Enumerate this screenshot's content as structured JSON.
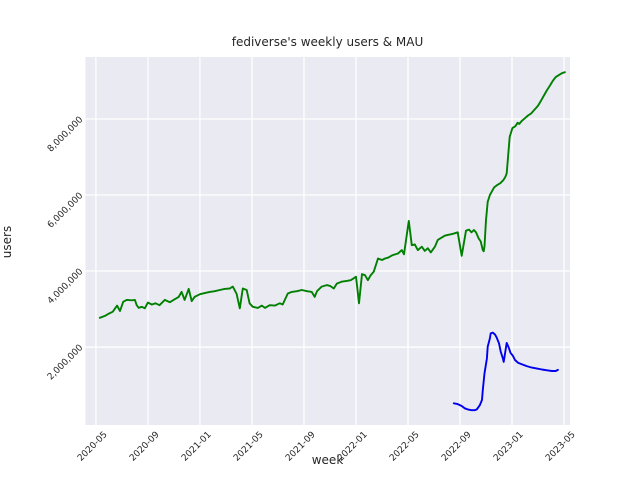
{
  "chart_data": {
    "type": "line",
    "title": "fediverse's weekly users & MAU",
    "xlabel": "week",
    "ylabel": "users",
    "grid": true,
    "legend": "none",
    "plot_bg_color": "#eaeaf2",
    "grid_color": "#ffffff",
    "text_color": "#262626",
    "x_tick_labels": [
      "2020-05",
      "2020-09",
      "2021-01",
      "2021-05",
      "2021-09",
      "2022-01",
      "2022-05",
      "2022-09",
      "2023-01",
      "2023-05"
    ],
    "y_ticks": [
      {
        "value": 2000000,
        "label": "2,000,000"
      },
      {
        "value": 4000000,
        "label": "4,000,000"
      },
      {
        "value": 6000000,
        "label": "6,000,000"
      },
      {
        "value": 8000000,
        "label": "8,000,000"
      }
    ],
    "xlim": [
      "2020-04-07",
      "2023-05-15"
    ],
    "ylim": [
      -50000,
      9630000
    ],
    "series": [
      {
        "name": "weekly users",
        "color": "#008000",
        "points": [
          [
            "2020-05-10",
            2770000
          ],
          [
            "2020-05-22",
            2820000
          ],
          [
            "2020-06-01",
            2880000
          ],
          [
            "2020-06-10",
            2930000
          ],
          [
            "2020-06-20",
            3090000
          ],
          [
            "2020-06-27",
            2950000
          ],
          [
            "2020-07-04",
            3190000
          ],
          [
            "2020-07-12",
            3240000
          ],
          [
            "2020-07-24",
            3230000
          ],
          [
            "2020-08-01",
            3240000
          ],
          [
            "2020-08-05",
            3100000
          ],
          [
            "2020-08-10",
            3030000
          ],
          [
            "2020-08-17",
            3060000
          ],
          [
            "2020-08-24",
            3020000
          ],
          [
            "2020-09-01",
            3170000
          ],
          [
            "2020-09-10",
            3120000
          ],
          [
            "2020-09-19",
            3150000
          ],
          [
            "2020-09-28",
            3100000
          ],
          [
            "2020-10-10",
            3240000
          ],
          [
            "2020-10-22",
            3180000
          ],
          [
            "2020-11-03",
            3260000
          ],
          [
            "2020-11-12",
            3320000
          ],
          [
            "2020-11-19",
            3450000
          ],
          [
            "2020-11-26",
            3240000
          ],
          [
            "2020-12-05",
            3530000
          ],
          [
            "2020-12-12",
            3210000
          ],
          [
            "2020-12-19",
            3320000
          ],
          [
            "2021-01-01",
            3390000
          ],
          [
            "2021-01-12",
            3420000
          ],
          [
            "2021-01-24",
            3450000
          ],
          [
            "2021-02-05",
            3470000
          ],
          [
            "2021-02-17",
            3500000
          ],
          [
            "2021-02-28",
            3530000
          ],
          [
            "2021-03-10",
            3540000
          ],
          [
            "2021-03-17",
            3590000
          ],
          [
            "2021-03-26",
            3400000
          ],
          [
            "2021-04-03",
            3020000
          ],
          [
            "2021-04-10",
            3540000
          ],
          [
            "2021-04-19",
            3500000
          ],
          [
            "2021-04-26",
            3150000
          ],
          [
            "2021-05-03",
            3060000
          ],
          [
            "2021-05-15",
            3030000
          ],
          [
            "2021-05-24",
            3090000
          ],
          [
            "2021-06-01",
            3030000
          ],
          [
            "2021-06-12",
            3100000
          ],
          [
            "2021-06-24",
            3090000
          ],
          [
            "2021-07-05",
            3150000
          ],
          [
            "2021-07-12",
            3120000
          ],
          [
            "2021-07-24",
            3410000
          ],
          [
            "2021-08-03",
            3450000
          ],
          [
            "2021-08-15",
            3470000
          ],
          [
            "2021-08-26",
            3500000
          ],
          [
            "2021-09-08",
            3470000
          ],
          [
            "2021-09-19",
            3450000
          ],
          [
            "2021-09-26",
            3320000
          ],
          [
            "2021-10-01",
            3470000
          ],
          [
            "2021-10-12",
            3590000
          ],
          [
            "2021-10-24",
            3630000
          ],
          [
            "2021-11-01",
            3610000
          ],
          [
            "2021-11-10",
            3540000
          ],
          [
            "2021-11-17",
            3670000
          ],
          [
            "2021-11-28",
            3720000
          ],
          [
            "2021-12-10",
            3740000
          ],
          [
            "2021-12-19",
            3760000
          ],
          [
            "2021-12-26",
            3810000
          ],
          [
            "2022-01-01",
            3850000
          ],
          [
            "2022-01-08",
            3150000
          ],
          [
            "2022-01-15",
            3920000
          ],
          [
            "2022-01-22",
            3890000
          ],
          [
            "2022-01-29",
            3760000
          ],
          [
            "2022-02-05",
            3890000
          ],
          [
            "2022-02-12",
            3980000
          ],
          [
            "2022-02-22",
            4330000
          ],
          [
            "2022-03-01",
            4290000
          ],
          [
            "2022-03-08",
            4330000
          ],
          [
            "2022-03-15",
            4350000
          ],
          [
            "2022-03-26",
            4420000
          ],
          [
            "2022-04-08",
            4460000
          ],
          [
            "2022-04-17",
            4550000
          ],
          [
            "2022-04-22",
            4440000
          ],
          [
            "2022-05-03",
            5320000
          ],
          [
            "2022-05-10",
            4680000
          ],
          [
            "2022-05-17",
            4700000
          ],
          [
            "2022-05-24",
            4550000
          ],
          [
            "2022-06-03",
            4640000
          ],
          [
            "2022-06-10",
            4530000
          ],
          [
            "2022-06-17",
            4600000
          ],
          [
            "2022-06-24",
            4490000
          ],
          [
            "2022-07-03",
            4640000
          ],
          [
            "2022-07-10",
            4820000
          ],
          [
            "2022-07-19",
            4880000
          ],
          [
            "2022-07-26",
            4930000
          ],
          [
            "2022-08-03",
            4950000
          ],
          [
            "2022-08-15",
            4980000
          ],
          [
            "2022-08-26",
            5020000
          ],
          [
            "2022-09-05",
            4400000
          ],
          [
            "2022-09-15",
            5060000
          ],
          [
            "2022-09-22",
            5090000
          ],
          [
            "2022-09-28",
            5020000
          ],
          [
            "2022-10-03",
            5080000
          ],
          [
            "2022-10-08",
            5020000
          ],
          [
            "2022-10-14",
            4860000
          ],
          [
            "2022-10-19",
            4780000
          ],
          [
            "2022-10-24",
            4550000
          ],
          [
            "2022-10-26",
            4520000
          ],
          [
            "2022-10-28",
            4650000
          ],
          [
            "2022-11-01",
            5340000
          ],
          [
            "2022-11-05",
            5820000
          ],
          [
            "2022-11-10",
            6000000
          ],
          [
            "2022-11-15",
            6100000
          ],
          [
            "2022-11-20",
            6200000
          ],
          [
            "2022-11-27",
            6260000
          ],
          [
            "2022-12-04",
            6310000
          ],
          [
            "2022-12-11",
            6390000
          ],
          [
            "2022-12-16",
            6480000
          ],
          [
            "2022-12-19",
            6570000
          ],
          [
            "2022-12-26",
            7530000
          ],
          [
            "2023-01-02",
            7760000
          ],
          [
            "2023-01-09",
            7810000
          ],
          [
            "2023-01-14",
            7900000
          ],
          [
            "2023-01-18",
            7870000
          ],
          [
            "2023-01-24",
            7950000
          ],
          [
            "2023-02-01",
            8020000
          ],
          [
            "2023-02-08",
            8090000
          ],
          [
            "2023-02-15",
            8140000
          ],
          [
            "2023-02-22",
            8230000
          ],
          [
            "2023-03-01",
            8350000
          ],
          [
            "2023-03-08",
            8480000
          ],
          [
            "2023-03-15",
            8620000
          ],
          [
            "2023-03-22",
            8760000
          ],
          [
            "2023-03-29",
            8880000
          ],
          [
            "2023-04-05",
            9000000
          ],
          [
            "2023-04-12",
            9100000
          ],
          [
            "2023-04-19",
            9150000
          ],
          [
            "2023-04-26",
            9200000
          ],
          [
            "2023-05-03",
            9230000
          ]
        ]
      },
      {
        "name": "MAU",
        "color": "#0000ee",
        "points": [
          [
            "2022-08-17",
            520000
          ],
          [
            "2022-08-26",
            500000
          ],
          [
            "2022-09-05",
            450000
          ],
          [
            "2022-09-12",
            390000
          ],
          [
            "2022-09-19",
            360000
          ],
          [
            "2022-09-28",
            340000
          ],
          [
            "2022-10-05",
            340000
          ],
          [
            "2022-10-10",
            360000
          ],
          [
            "2022-10-17",
            470000
          ],
          [
            "2022-10-22",
            610000
          ],
          [
            "2022-10-24",
            870000
          ],
          [
            "2022-10-28",
            1310000
          ],
          [
            "2022-11-03",
            1700000
          ],
          [
            "2022-11-05",
            2010000
          ],
          [
            "2022-11-10",
            2230000
          ],
          [
            "2022-11-12",
            2360000
          ],
          [
            "2022-11-17",
            2380000
          ],
          [
            "2022-11-22",
            2330000
          ],
          [
            "2022-11-26",
            2250000
          ],
          [
            "2022-12-01",
            2100000
          ],
          [
            "2022-12-05",
            1880000
          ],
          [
            "2022-12-10",
            1700000
          ],
          [
            "2022-12-12",
            1610000
          ],
          [
            "2022-12-19",
            2110000
          ],
          [
            "2022-12-24",
            1980000
          ],
          [
            "2022-12-28",
            1850000
          ],
          [
            "2023-01-03",
            1770000
          ],
          [
            "2023-01-08",
            1660000
          ],
          [
            "2023-01-15",
            1590000
          ],
          [
            "2023-01-24",
            1550000
          ],
          [
            "2023-02-05",
            1500000
          ],
          [
            "2023-02-17",
            1460000
          ],
          [
            "2023-02-28",
            1440000
          ],
          [
            "2023-03-10",
            1410000
          ],
          [
            "2023-03-22",
            1390000
          ],
          [
            "2023-04-03",
            1370000
          ],
          [
            "2023-04-12",
            1370000
          ],
          [
            "2023-04-17",
            1400000
          ]
        ]
      }
    ]
  }
}
